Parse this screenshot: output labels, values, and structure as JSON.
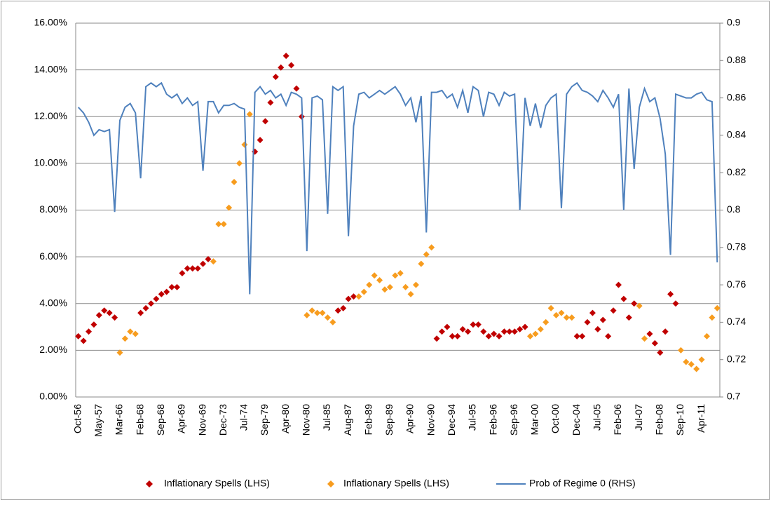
{
  "chart_data": {
    "type": "line",
    "categories": [
      "Oct-56",
      null,
      null,
      null,
      "May-57",
      null,
      null,
      null,
      "Mar-66",
      null,
      null,
      null,
      "Feb-68",
      null,
      null,
      null,
      "Sep-68",
      null,
      null,
      null,
      "Apr-69",
      null,
      null,
      null,
      "Nov-69",
      null,
      null,
      null,
      "Dec-73",
      null,
      null,
      null,
      "Jul-74",
      null,
      null,
      null,
      "Sep-79",
      null,
      null,
      null,
      "Apr-80",
      null,
      null,
      null,
      "Nov-80",
      null,
      null,
      null,
      "Jul-85",
      null,
      null,
      null,
      "Aug-87",
      null,
      null,
      null,
      "Feb-89",
      null,
      null,
      null,
      "Sep-89",
      null,
      null,
      null,
      "Apr-90",
      null,
      null,
      null,
      "Nov-90",
      null,
      null,
      null,
      "Dec-94",
      null,
      null,
      null,
      "Jul-95",
      null,
      null,
      null,
      "Feb-96",
      null,
      null,
      null,
      "Sep-96",
      null,
      null,
      null,
      "Mar-00",
      null,
      null,
      null,
      "Oct-00",
      null,
      null,
      null,
      "Dec-04",
      null,
      null,
      null,
      "Jul-05",
      null,
      null,
      null,
      "Feb-06",
      null,
      null,
      null,
      "Jul-07",
      null,
      null,
      null,
      "Feb-08",
      null,
      null,
      null,
      "Sep-10",
      null,
      null,
      null,
      "Apr-11",
      null,
      null,
      null
    ],
    "series": [
      {
        "name": "Inflationary Spells (LHS)",
        "type": "scatter",
        "marker": "diamond",
        "color": "#c00000",
        "axis": "y",
        "values": [
          2.6,
          2.4,
          2.8,
          3.1,
          3.5,
          3.7,
          3.6,
          3.4,
          null,
          null,
          null,
          null,
          3.6,
          3.8,
          4.0,
          4.2,
          4.4,
          4.5,
          4.7,
          4.7,
          5.3,
          5.5,
          5.5,
          5.5,
          5.7,
          5.9,
          null,
          null,
          null,
          null,
          null,
          null,
          null,
          null,
          10.5,
          11.0,
          11.8,
          12.6,
          13.7,
          14.1,
          14.6,
          14.2,
          13.2,
          12.0,
          null,
          null,
          null,
          null,
          null,
          null,
          3.7,
          3.8,
          4.2,
          4.3,
          null,
          null,
          null,
          null,
          null,
          null,
          null,
          null,
          null,
          null,
          null,
          null,
          null,
          null,
          null,
          2.5,
          2.8,
          3.0,
          2.6,
          2.6,
          2.9,
          2.8,
          3.1,
          3.1,
          2.8,
          2.6,
          2.7,
          2.6,
          2.8,
          2.8,
          2.8,
          2.9,
          3.0,
          null,
          null,
          null,
          null,
          null,
          null,
          null,
          null,
          null,
          2.6,
          2.6,
          3.2,
          3.6,
          2.9,
          3.3,
          2.6,
          3.7,
          4.8,
          4.2,
          3.4,
          4.0,
          null,
          null,
          2.7,
          2.3,
          1.9,
          2.8,
          4.4,
          4.0,
          null,
          null,
          null,
          null,
          null,
          null,
          null,
          null
        ]
      },
      {
        "name": "Inflationary Spells (LHS)",
        "type": "scatter",
        "marker": "diamond",
        "color": "#f79c1e",
        "axis": "y",
        "values": [
          null,
          null,
          null,
          null,
          null,
          null,
          null,
          null,
          1.9,
          2.5,
          2.8,
          2.7,
          null,
          null,
          null,
          null,
          null,
          null,
          null,
          null,
          null,
          null,
          null,
          null,
          null,
          null,
          5.8,
          7.4,
          7.4,
          8.1,
          9.2,
          10.0,
          10.8,
          12.1,
          null,
          null,
          null,
          null,
          null,
          null,
          null,
          null,
          null,
          null,
          3.5,
          3.7,
          3.6,
          3.6,
          3.4,
          3.2,
          null,
          null,
          null,
          null,
          4.3,
          4.5,
          4.8,
          5.2,
          5.0,
          4.6,
          4.7,
          5.2,
          5.3,
          4.7,
          4.4,
          4.8,
          5.7,
          6.1,
          6.4,
          null,
          null,
          null,
          null,
          null,
          null,
          null,
          null,
          null,
          null,
          null,
          null,
          null,
          null,
          null,
          null,
          null,
          null,
          2.6,
          2.7,
          2.9,
          3.2,
          3.8,
          3.5,
          3.6,
          3.4,
          3.4,
          null,
          null,
          null,
          null,
          null,
          null,
          null,
          null,
          null,
          null,
          null,
          null,
          3.9,
          2.5,
          null,
          null,
          null,
          null,
          null,
          null,
          2.0,
          1.5,
          1.4,
          1.2,
          1.6,
          2.6,
          3.4,
          3.8
        ]
      },
      {
        "name": "Prob of Regime 0 (RHS)",
        "type": "line",
        "color": "#4f81bd",
        "axis": "y2",
        "values": [
          0.855,
          0.852,
          0.847,
          0.84,
          0.843,
          0.842,
          0.843,
          0.799,
          0.848,
          0.855,
          0.857,
          0.852,
          0.817,
          0.866,
          0.868,
          0.866,
          0.868,
          0.862,
          0.86,
          0.862,
          0.857,
          0.86,
          0.856,
          0.858,
          0.821,
          0.858,
          0.858,
          0.852,
          0.856,
          0.856,
          0.857,
          0.855,
          0.854,
          0.755,
          0.863,
          0.866,
          0.862,
          0.864,
          0.86,
          0.862,
          0.856,
          0.863,
          0.862,
          0.86,
          0.778,
          0.86,
          0.861,
          0.859,
          0.798,
          0.866,
          0.864,
          0.866,
          0.786,
          0.845,
          0.862,
          0.863,
          0.86,
          0.862,
          0.864,
          0.862,
          0.864,
          0.866,
          0.862,
          0.856,
          0.86,
          0.847,
          0.861,
          0.788,
          0.863,
          0.863,
          0.864,
          0.86,
          0.862,
          0.855,
          0.864,
          0.852,
          0.866,
          0.864,
          0.85,
          0.863,
          0.862,
          0.856,
          0.863,
          0.861,
          0.862,
          0.8,
          0.86,
          0.845,
          0.857,
          0.844,
          0.856,
          0.86,
          0.862,
          0.801,
          0.862,
          0.866,
          0.868,
          0.864,
          0.863,
          0.861,
          0.858,
          0.864,
          0.86,
          0.855,
          0.862,
          0.8,
          0.865,
          0.822,
          0.855,
          0.865,
          0.858,
          0.86,
          0.849,
          0.83,
          0.776,
          0.862,
          0.861,
          0.86,
          0.86,
          0.862,
          0.863,
          0.859,
          0.858,
          0.772
        ]
      }
    ],
    "ylim": [
      0,
      16
    ],
    "yticks": [
      {
        "value": 0,
        "label": "0.00%"
      },
      {
        "value": 2,
        "label": "2.00%"
      },
      {
        "value": 4,
        "label": "4.00%"
      },
      {
        "value": 6,
        "label": "6.00%"
      },
      {
        "value": 8,
        "label": "8.00%"
      },
      {
        "value": 10,
        "label": "10.00%"
      },
      {
        "value": 12,
        "label": "12.00%"
      },
      {
        "value": 14,
        "label": "14.00%"
      },
      {
        "value": 16,
        "label": "16.00%"
      }
    ],
    "y2lim": [
      0.7,
      0.9
    ],
    "y2ticks": [
      0.7,
      0.72,
      0.74,
      0.76,
      0.78,
      0.8,
      0.82,
      0.84,
      0.86,
      0.88,
      0.9
    ],
    "grid": true,
    "legend": "bottom"
  }
}
